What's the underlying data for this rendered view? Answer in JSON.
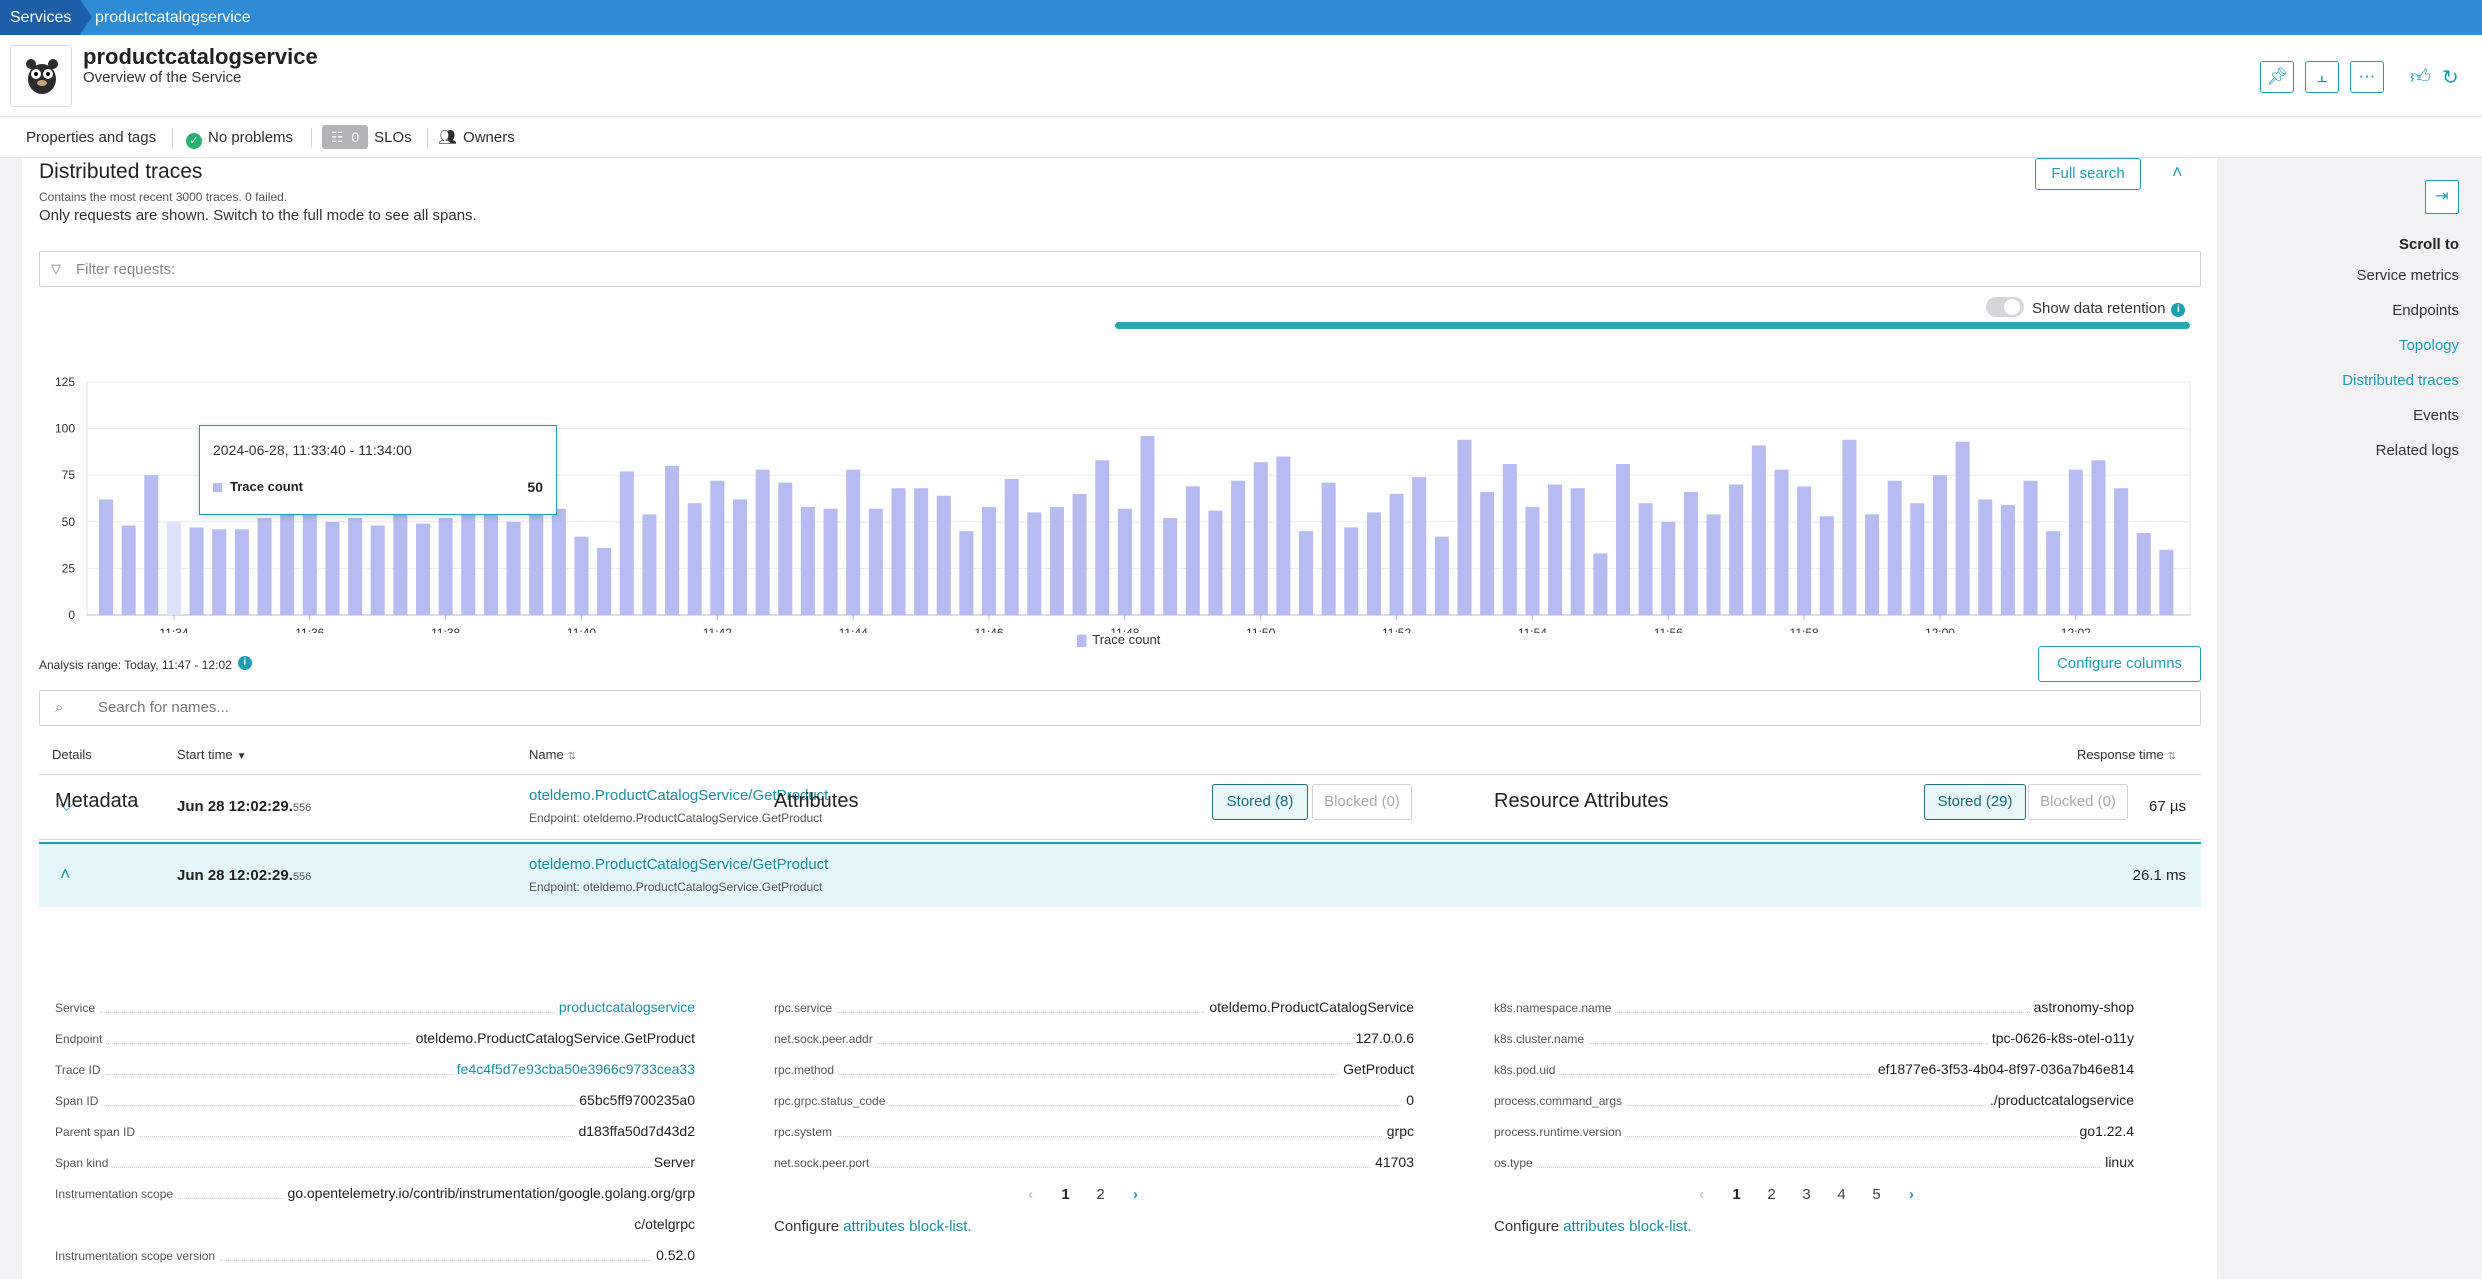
{
  "breadcrumb": {
    "root": "Services",
    "current": "productcatalogservice"
  },
  "header": {
    "title": "productcatalogservice",
    "subtitle": "Overview of the Service"
  },
  "subheader": {
    "properties": "Properties and tags",
    "problems": "No problems",
    "slo_count": "0",
    "slo_label": "SLOs",
    "owners": "Owners"
  },
  "traces": {
    "title": "Distributed traces",
    "note": "Contains the most recent 3000 traces. 0 failed.",
    "note2": "Only requests are shown. Switch to the full mode to see all spans.",
    "full_search": "Full search",
    "filter_placeholder": "Filter requests:",
    "show_retention": "Show data retention",
    "analysis_range": "Analysis range: Today, 11:47 - 12:02",
    "configure_columns": "Configure columns",
    "search_placeholder": "Search for names...",
    "legend": "Trace count",
    "tooltip": {
      "range": "2024-06-28, 11:33:40 - 11:34:00",
      "label": "Trace count",
      "value": "50"
    }
  },
  "chart_data": {
    "type": "bar",
    "series": [
      {
        "name": "Trace count",
        "values": [
          62,
          48,
          75,
          50,
          47,
          46,
          46,
          52,
          58,
          57,
          50,
          52,
          48,
          55,
          49,
          52,
          54,
          57,
          50,
          56,
          57,
          42,
          36,
          77,
          54,
          80,
          60,
          72,
          62,
          78,
          71,
          58,
          57,
          78,
          57,
          68,
          68,
          64,
          45,
          58,
          73,
          55,
          58,
          65,
          83,
          57,
          96,
          52,
          69,
          56,
          72,
          82,
          85,
          45,
          71,
          47,
          55,
          65,
          74,
          42,
          94,
          66,
          81,
          58,
          70,
          68,
          33,
          81,
          60,
          50,
          66,
          54,
          70,
          91,
          78,
          69,
          53,
          94,
          54,
          72,
          60,
          75,
          93,
          62,
          59,
          72,
          45,
          78,
          83,
          68,
          44,
          35
        ]
      }
    ],
    "ylim": [
      0,
      125
    ],
    "yticks": [
      0,
      25,
      50,
      75,
      100,
      125
    ],
    "xticks": [
      "11:34",
      "11:36",
      "11:38",
      "11:40",
      "11:42",
      "11:44",
      "11:46",
      "11:48",
      "11:50",
      "11:52",
      "11:54",
      "11:56",
      "11:58",
      "12:00",
      "12:02"
    ],
    "highlight_index": 3,
    "bar_color": "#b6bcf2",
    "highlight_color": "#dde1fb"
  },
  "table": {
    "headers": {
      "details": "Details",
      "start": "Start time",
      "name": "Name",
      "response": "Response time"
    },
    "rows": [
      {
        "start": "Jun 28 12:02:29.",
        "ms": "556",
        "name": "oteldemo.ProductCatalogService/GetProduct",
        "endpoint": "Endpoint: oteldemo.ProductCatalogService.GetProduct",
        "response": "67 µs"
      },
      {
        "start": "Jun 28 12:02:29.",
        "ms": "556",
        "name": "oteldemo.ProductCatalogService/GetProduct",
        "endpoint": "Endpoint: oteldemo.ProductCatalogService.GetProduct",
        "response": "26.1 ms"
      }
    ]
  },
  "metadata": {
    "title": "Metadata",
    "items": [
      {
        "k": "Service",
        "v": "productcatalogservice"
      },
      {
        "k": "Endpoint",
        "v": "oteldemo.ProductCatalogService.GetProduct"
      },
      {
        "k": "Trace ID",
        "v": "fe4c4f5d7e93cba50e3966c9733cea33"
      },
      {
        "k": "Span ID",
        "v": "65bc5ff9700235a0"
      },
      {
        "k": "Parent span ID",
        "v": "d183ffa50d7d43d2"
      },
      {
        "k": "Span kind",
        "v": "Server"
      },
      {
        "k": "Instrumentation scope",
        "v": "go.opentelemetry.io/contrib/instrumentation/google.golang.org/grp",
        "v2": "c/otelgrpc"
      },
      {
        "k": "Instrumentation scope version",
        "v": "0.52.0"
      }
    ]
  },
  "attributes": {
    "title": "Attributes",
    "stored": "Stored (8)",
    "blocked": "Blocked (0)",
    "items": [
      {
        "k": "rpc.service",
        "v": "oteldemo.ProductCatalogService"
      },
      {
        "k": "net.sock.peer.addr",
        "v": "127.0.0.6"
      },
      {
        "k": "rpc.method",
        "v": "GetProduct"
      },
      {
        "k": "rpc.grpc.status_code",
        "v": "0"
      },
      {
        "k": "rpc.system",
        "v": "grpc"
      },
      {
        "k": "net.sock.peer.port",
        "v": "41703"
      }
    ],
    "pages": [
      "1",
      "2"
    ],
    "configure_prefix": "Configure",
    "configure_link": "attributes block-list."
  },
  "resource": {
    "title": "Resource Attributes",
    "stored": "Stored (29)",
    "blocked": "Blocked (0)",
    "items": [
      {
        "k": "k8s.namespace.name",
        "v": "astronomy-shop"
      },
      {
        "k": "k8s.cluster.name",
        "v": "tpc-0626-k8s-otel-o11y"
      },
      {
        "k": "k8s.pod.uid",
        "v": "ef1877e6-3f53-4b04-8f97-036a7b46e814"
      },
      {
        "k": "process.command_args",
        "v": "./productcatalogservice"
      },
      {
        "k": "process.runtime.version",
        "v": "go1.22.4"
      },
      {
        "k": "os.type",
        "v": "linux"
      }
    ],
    "pages": [
      "1",
      "2",
      "3",
      "4",
      "5"
    ],
    "configure_prefix": "Configure",
    "configure_link": "attributes block-list."
  },
  "scrollnav": {
    "title": "Scroll to",
    "items": [
      "Service metrics",
      "Endpoints",
      "Topology",
      "Distributed traces",
      "Events",
      "Related logs"
    ]
  }
}
